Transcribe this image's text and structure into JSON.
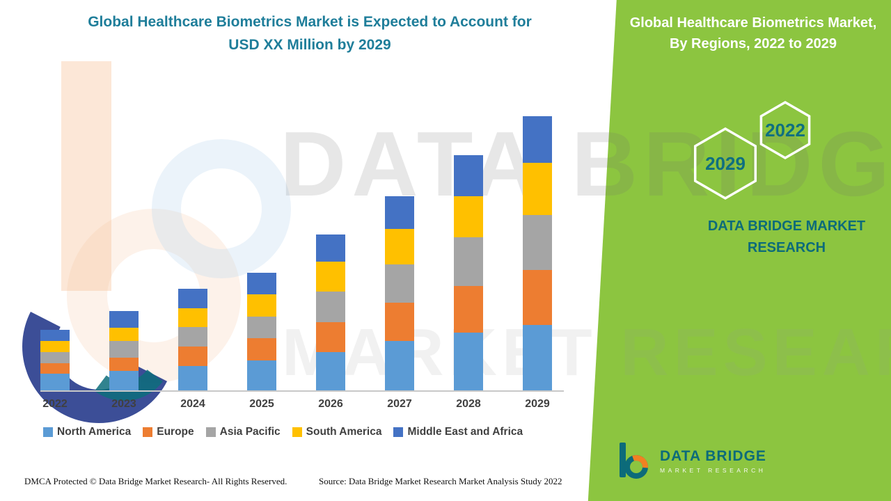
{
  "header": {
    "title_line1": "Global Healthcare Biometrics Market is Expected to Account for",
    "title_line2": "USD XX Million by 2029",
    "panel_title": "Global Healthcare Biometrics Market, By Regions, 2022 to 2029"
  },
  "panel": {
    "hex_left_year": "2029",
    "hex_right_year": "2022",
    "brand_line": "DATA BRIDGE MARKET RESEARCH"
  },
  "watermark": {
    "line1": "DATA BRIDGE",
    "line2": "MARKET RESEARCH"
  },
  "chart_data": {
    "type": "bar",
    "stacked": true,
    "title": "Global Healthcare Biometrics Market, By Regions, 2022 to 2029",
    "categories": [
      "2022",
      "2023",
      "2024",
      "2025",
      "2026",
      "2027",
      "2028",
      "2029"
    ],
    "series": [
      {
        "name": "North America",
        "color": "#5B9BD5",
        "values": [
          6,
          7,
          9,
          11,
          14,
          18,
          21,
          24
        ]
      },
      {
        "name": "Europe",
        "color": "#ED7D31",
        "values": [
          4,
          5,
          7,
          8,
          11,
          14,
          17,
          20
        ]
      },
      {
        "name": "Asia Pacific",
        "color": "#A5A5A5",
        "values": [
          4,
          6,
          7,
          8,
          11,
          14,
          18,
          20
        ]
      },
      {
        "name": "South America",
        "color": "#FFC000",
        "values": [
          4,
          5,
          7,
          8,
          11,
          13,
          15,
          19
        ]
      },
      {
        "name": "Middle East and Africa",
        "color": "#4472C4",
        "values": [
          4,
          6,
          7,
          8,
          10,
          12,
          15,
          17
        ]
      }
    ],
    "xlabel": "",
    "ylabel": "",
    "ylim": [
      0,
      110
    ],
    "grid": false,
    "legend_position": "bottom",
    "value_note": "USD XX Million (values not labeled in figure; relative units estimated from bar heights)"
  },
  "footer": {
    "dmca": "DMCA Protected © Data Bridge Market Research- All Rights Reserved.",
    "source": "Source: Data Bridge Market Research Market Analysis Study 2022"
  },
  "logo": {
    "name_line": "DATA BRIDGE",
    "sub_line": "MARKET RESEARCH"
  },
  "colors": {
    "panel_green": "#8CC540",
    "title_teal": "#1F7E9A",
    "brand_teal": "#0C6B7A",
    "axis_gray": "#C8C8C8",
    "label_gray": "#404040"
  }
}
